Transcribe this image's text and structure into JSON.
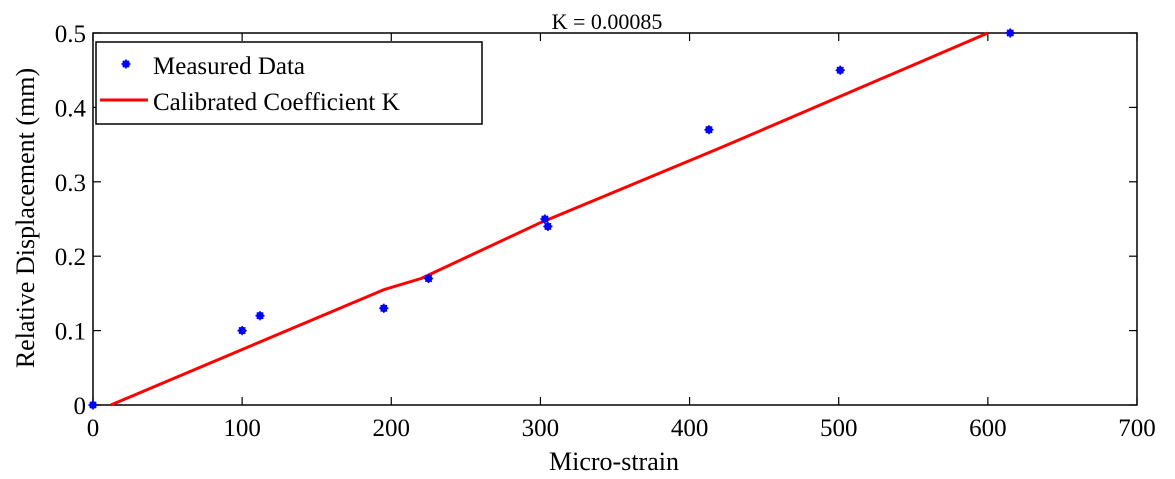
{
  "chart_data": {
    "type": "scatter",
    "annotation": "K = 0.00085",
    "xlabel": "Micro-strain",
    "ylabel": "Relative Displacement (mm)",
    "xlim": [
      0,
      700
    ],
    "ylim": [
      0,
      0.5
    ],
    "x_ticks": [
      "0",
      "100",
      "200",
      "300",
      "400",
      "500",
      "600",
      "700"
    ],
    "y_ticks": [
      "0",
      "0.1",
      "0.2",
      "0.3",
      "0.4",
      "0.5"
    ],
    "x_tick_values": [
      0,
      100,
      200,
      300,
      400,
      500,
      600,
      700
    ],
    "y_tick_values": [
      0,
      0.1,
      0.2,
      0.3,
      0.4,
      0.5
    ],
    "grid": false,
    "legend_position": "top-left",
    "series": [
      {
        "name": "Measured Data",
        "kind": "markers",
        "color": "#0000ff",
        "x": [
          0,
          100,
          112,
          195,
          225,
          303,
          305,
          413,
          501,
          615
        ],
        "y": [
          0,
          0.1,
          0.12,
          0.13,
          0.17,
          0.25,
          0.24,
          0.37,
          0.45,
          0.5
        ]
      },
      {
        "name": "Calibrated Coefficient K",
        "kind": "line",
        "color": "#ff0000",
        "x": [
          12,
          195,
          220,
          300,
          420,
          600
        ],
        "y": [
          0,
          0.155,
          0.17,
          0.245,
          0.345,
          0.5
        ]
      }
    ]
  }
}
